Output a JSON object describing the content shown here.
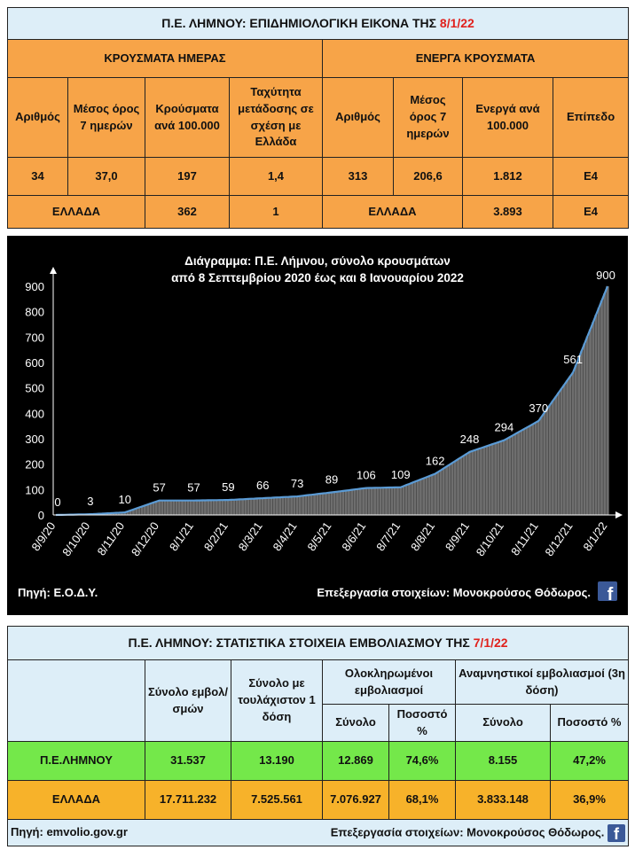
{
  "cases_table": {
    "title_prefix": "Π.Ε. ΛΗΜΝΟΥ: ΕΠΙΔΗΜΙΟΛΟΓΙΚΗ ΕΙΚΟΝΑ ΤΗΣ ",
    "title_date": "8/1/22",
    "daily_header": "ΚΡΟΥΣΜΑΤΑ ΗΜΕΡΑΣ",
    "active_header": "ΕΝΕΡΓΑ ΚΡΟΥΣΜΑΤΑ",
    "columns": [
      "Αριθμός",
      "Μέσος όρος 7 ημερών",
      "Κρούσματα ανά 100.000",
      "Ταχύτητα μετάδοσης σε σχέση με Ελλάδα",
      "Αριθμός",
      "Μέσος όρος 7 ημερών",
      "Ενεργά ανά 100.000",
      "Επίπεδο"
    ],
    "lemnos_row": [
      "34",
      "37,0",
      "197",
      "1,4",
      "313",
      "206,6",
      "1.812",
      "E4"
    ],
    "greece_label_left": "ΕΛΛΑΔΑ",
    "greece_per100k": "362",
    "greece_speed": "1",
    "greece_label_right": "ΕΛΛΑΔΑ",
    "greece_active_per100k": "3.893",
    "greece_level": "E4"
  },
  "chart": {
    "title_line1": "Διάγραμμα:  Π.Ε. Λήμνου, σύνολο κρουσμάτων",
    "title_line2": "από 8 Σεπτεμβρίου 2020 έως και 8 Ιανουαρίου 2022",
    "source": "Πηγή: Ε.Ο.Δ.Υ.",
    "credit": "Επεξεργασία  στοιχείων: Μονοκρούσος Θόδωρος.",
    "fb_icon": "facebook-icon",
    "line_color": "#5b9bd5",
    "bar_color": "#6e6e6e"
  },
  "chart_data": {
    "type": "area",
    "title": "Διάγραμμα:  Π.Ε. Λήμνου, σύνολο κρουσμάτων από 8 Σεπτεμβρίου 2020 έως και 8 Ιανουαρίου 2022",
    "x": [
      "8/9/20",
      "8/10/20",
      "8/11/20",
      "8/12/20",
      "8/1/21",
      "8/2/21",
      "8/3/21",
      "8/4/21",
      "8/5/21",
      "8/6/21",
      "8/7/21",
      "8/8/21",
      "8/9/21",
      "8/10/21",
      "8/11/21",
      "8/12/21",
      "8/1/22"
    ],
    "values": [
      0,
      3,
      10,
      57,
      57,
      59,
      66,
      73,
      89,
      106,
      109,
      162,
      248,
      294,
      370,
      561,
      900
    ],
    "ylim": [
      0,
      900
    ],
    "yticks": [
      0,
      100,
      200,
      300,
      400,
      500,
      600,
      700,
      800,
      900
    ],
    "grid": false
  },
  "vacc_table": {
    "title_prefix": "Π.Ε. ΛΗΜΝΟΥ: ΣΤΑΤΙΣΤΙΚΑ ΣΤΟΙΧΕΙΑ ΕΜΒΟΛΙΑΣΜΟΥ ΤΗΣ ",
    "title_date": "7/1/22",
    "col_total": "Σύνολο εμβολ/σμών",
    "col_one_dose": "Σύνολο με τουλάχιστον 1 δόση",
    "col_completed": "Ολοκληρωμένοι εμβολιασμοί",
    "col_booster": "Αναμνηστικοί εμβολιασμοί (3η δόση)",
    "sub_total": "Σύνολο",
    "sub_percent": "Ποσοστό %",
    "sub_total2": "Σύνολο",
    "sub_percent2": "Ποσοστό %",
    "rows": [
      [
        "Π.Ε.ΛΗΜΝΟΥ",
        "31.537",
        "13.190",
        "12.869",
        "74,6%",
        "8.155",
        "47,2%"
      ],
      [
        "ΕΛΛΑΔΑ",
        "17.711.232",
        "7.525.561",
        "7.076.927",
        "68,1%",
        "3.833.148",
        "36,9%"
      ]
    ],
    "source": "Πηγή: emvolio.gov.gr",
    "credit": "Επεξεργασία στοιχείων: Μονοκρούσος Θόδωρος."
  }
}
